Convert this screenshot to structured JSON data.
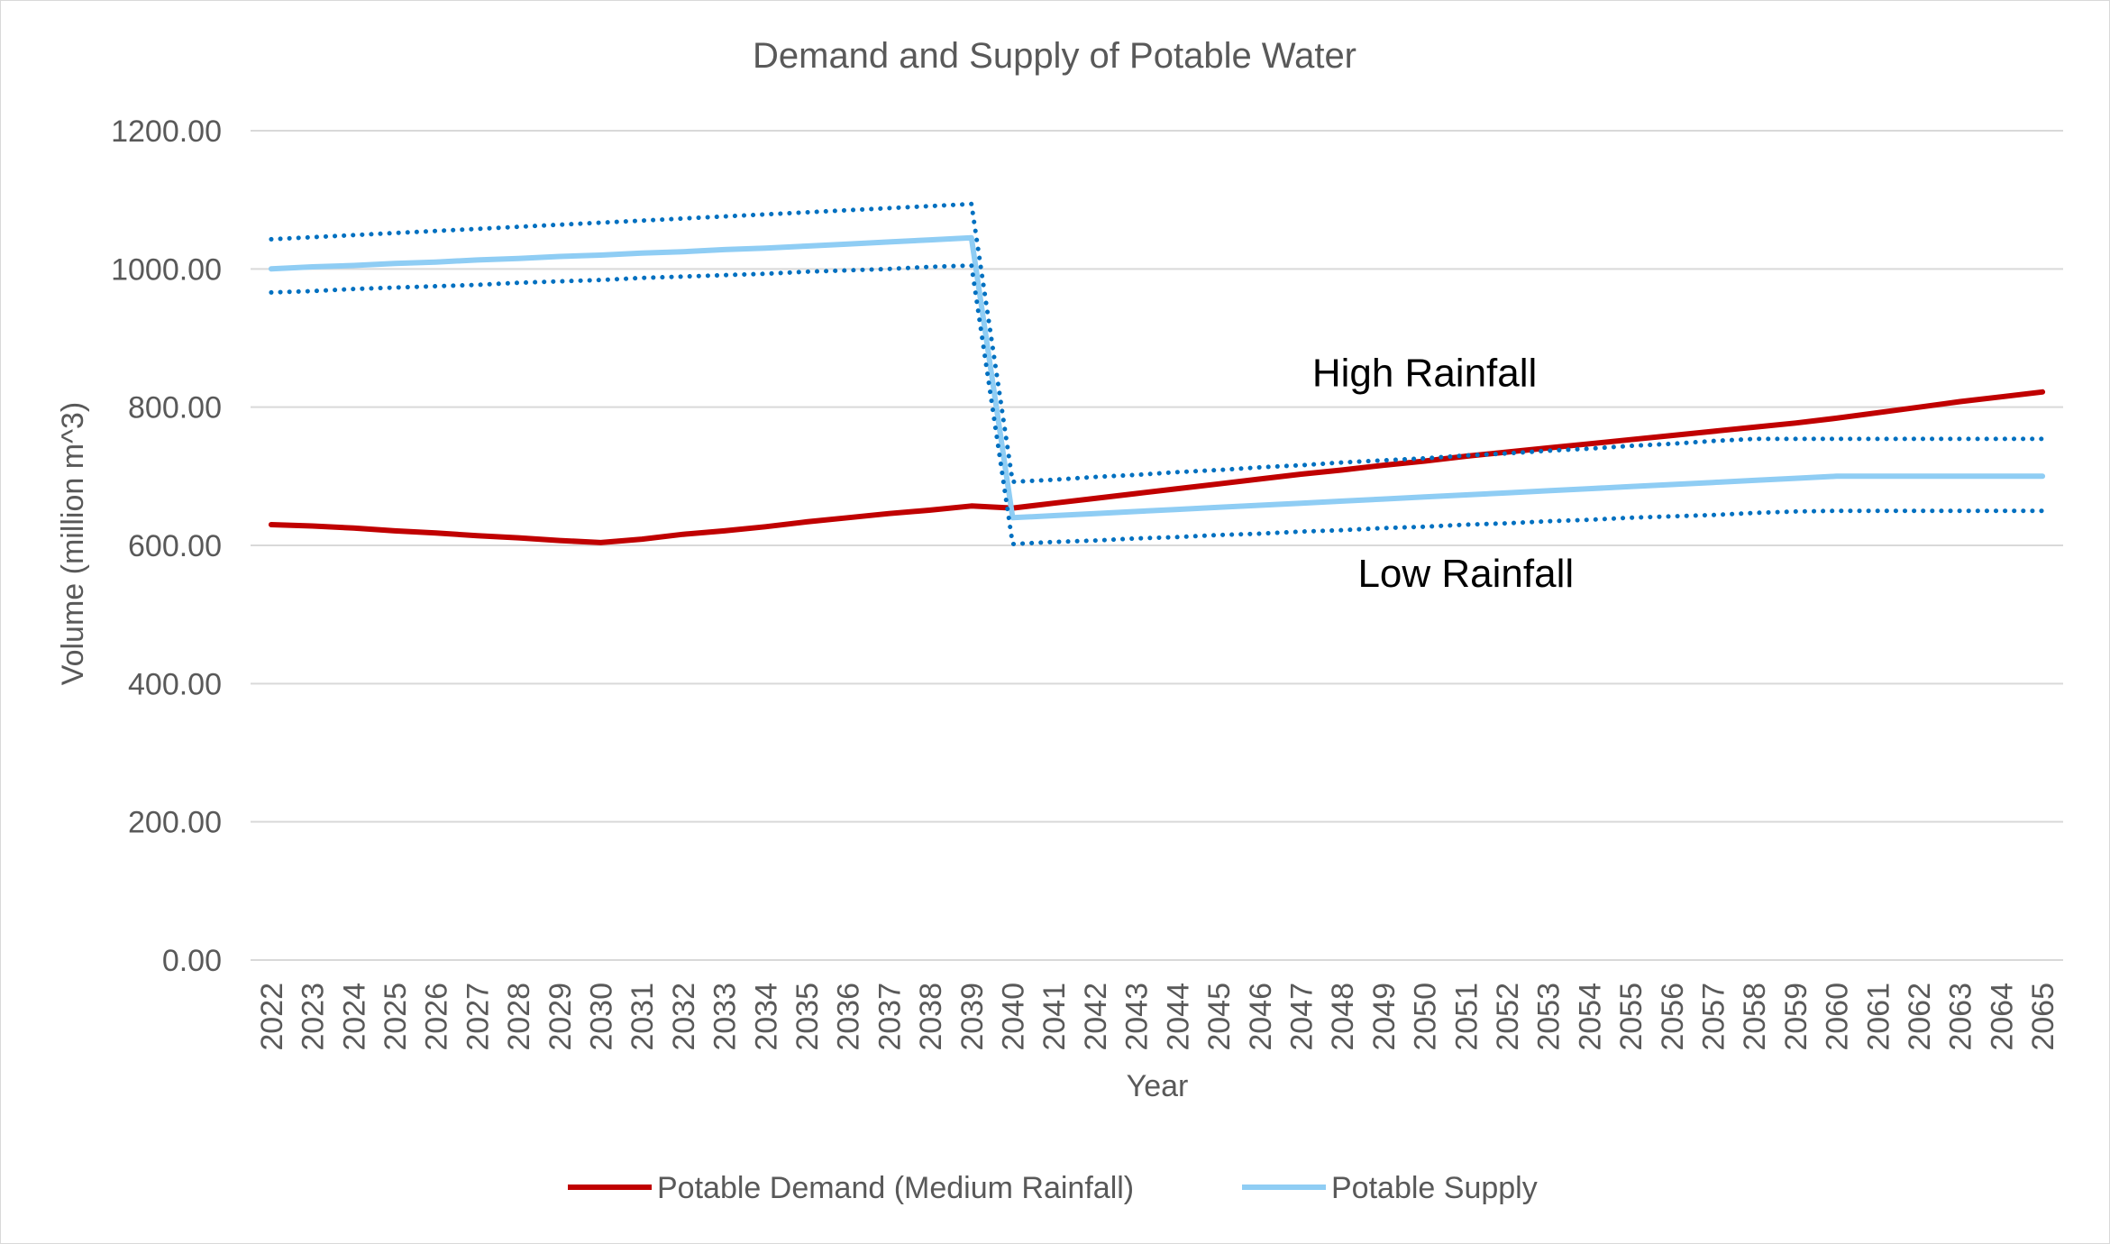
{
  "chart_data": {
    "type": "line",
    "title": "Demand and Supply of Potable Water",
    "xlabel": "Year",
    "ylabel": "Volume (million m^3)",
    "ylim": [
      0,
      1200
    ],
    "yticks": [
      "0.00",
      "200.00",
      "400.00",
      "600.00",
      "800.00",
      "1000.00",
      "1200.00"
    ],
    "grid": true,
    "legend_position": "bottom",
    "categories": [
      "2022",
      "2023",
      "2024",
      "2025",
      "2026",
      "2027",
      "2028",
      "2029",
      "2030",
      "2031",
      "2032",
      "2033",
      "2034",
      "2035",
      "2036",
      "2037",
      "2038",
      "2039",
      "2040",
      "2041",
      "2042",
      "2043",
      "2044",
      "2045",
      "2046",
      "2047",
      "2048",
      "2049",
      "2050",
      "2051",
      "2052",
      "2053",
      "2054",
      "2055",
      "2056",
      "2057",
      "2058",
      "2059",
      "2060",
      "2061",
      "2062",
      "2063",
      "2064",
      "2065"
    ],
    "series": [
      {
        "name": "Potable Demand (Medium Rainfall)",
        "color": "#c00000",
        "style": "solid",
        "in_legend": true,
        "values": [
          630,
          628,
          625,
          621,
          618,
          614,
          611,
          607,
          604,
          609,
          616,
          621,
          627,
          634,
          640,
          646,
          651,
          657,
          654,
          661,
          668,
          675,
          682,
          689,
          696,
          703,
          709,
          716,
          722,
          729,
          735,
          741,
          747,
          753,
          759,
          765,
          771,
          777,
          784,
          792,
          800,
          808,
          815,
          822
        ]
      },
      {
        "name": "Potable Supply",
        "color": "#8fcdf4",
        "style": "solid",
        "in_legend": true,
        "values": [
          1000,
          1003,
          1005,
          1008,
          1010,
          1013,
          1015,
          1018,
          1020,
          1023,
          1025,
          1028,
          1030,
          1033,
          1036,
          1039,
          1042,
          1045,
          640,
          643,
          646,
          649,
          652,
          655,
          658,
          661,
          664,
          667,
          670,
          673,
          676,
          679,
          682,
          685,
          688,
          691,
          694,
          697,
          700,
          700,
          700,
          700,
          700,
          700
        ]
      },
      {
        "name": "High Rainfall",
        "color": "#0070c0",
        "style": "dotted",
        "in_legend": false,
        "values": [
          1043,
          1046,
          1049,
          1052,
          1055,
          1058,
          1061,
          1064,
          1067,
          1070,
          1073,
          1076,
          1079,
          1082,
          1085,
          1088,
          1091,
          1094,
          692,
          695,
          699,
          702,
          706,
          709,
          713,
          716,
          720,
          723,
          726,
          730,
          733,
          737,
          740,
          744,
          747,
          751,
          754,
          754,
          754,
          754,
          754,
          754,
          754,
          754
        ]
      },
      {
        "name": "Low Rainfall",
        "color": "#0070c0",
        "style": "dotted",
        "in_legend": false,
        "values": [
          966,
          968,
          971,
          973,
          975,
          977,
          980,
          982,
          984,
          987,
          989,
          991,
          993,
          996,
          998,
          1000,
          1003,
          1005,
          602,
          605,
          607,
          610,
          612,
          615,
          617,
          620,
          622,
          625,
          627,
          630,
          632,
          635,
          637,
          640,
          642,
          644,
          647,
          649,
          650,
          650,
          650,
          650,
          650,
          650
        ]
      }
    ],
    "annotations": [
      {
        "text": "High Rainfall",
        "x": "2050",
        "y": 830
      },
      {
        "text": "Low Rainfall",
        "x": "2051",
        "y": 540
      }
    ]
  }
}
